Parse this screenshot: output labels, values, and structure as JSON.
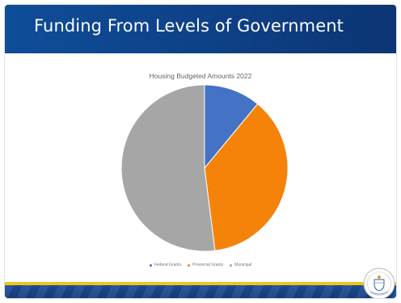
{
  "slide": {
    "title": "Funding From Levels of Government"
  },
  "chart_data": {
    "type": "pie",
    "title": "Housing Budgeted Amounts 2022",
    "categories": [
      "Federal Grants",
      "Provincial Grants",
      "Municipal"
    ],
    "values": [
      11,
      37,
      52
    ],
    "colors": [
      "#4472c4",
      "#f5830a",
      "#a6a6a6"
    ],
    "legend_position": "bottom"
  },
  "seal_icon": "city-seal-icon"
}
